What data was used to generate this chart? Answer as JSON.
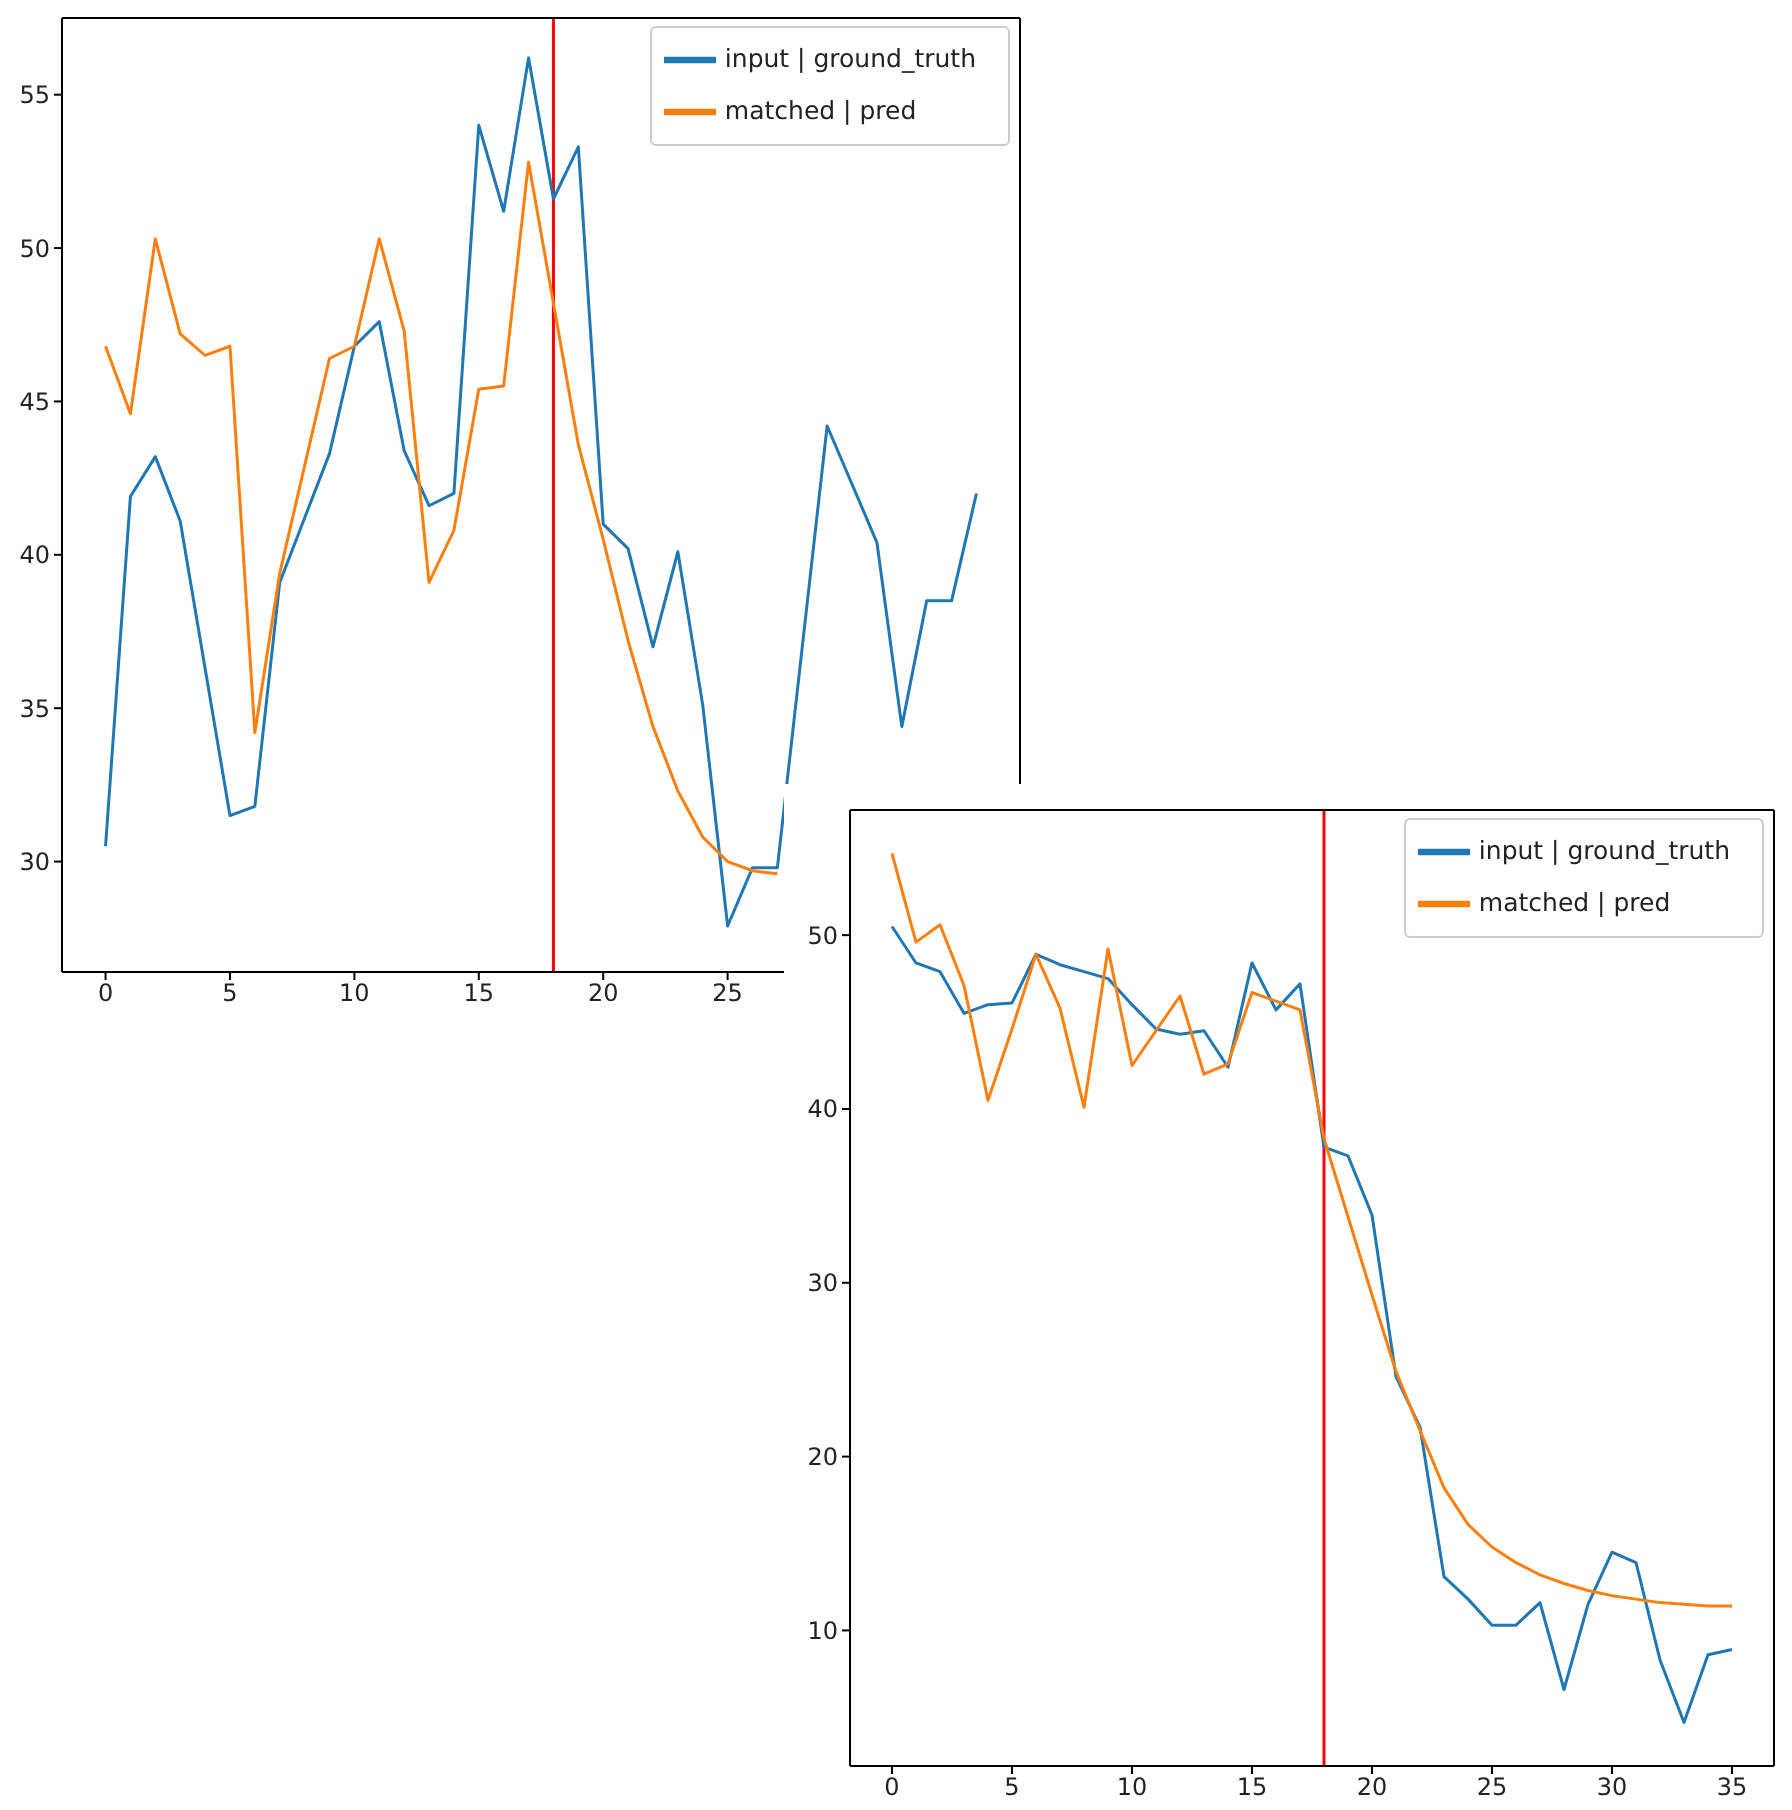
{
  "chart_data": [
    {
      "type": "line",
      "x": [
        0,
        1,
        2,
        3,
        4,
        5,
        6,
        7,
        8,
        9,
        10,
        11,
        12,
        13,
        14,
        15,
        16,
        17,
        18,
        19,
        20,
        21,
        22,
        23,
        24,
        25,
        26,
        27,
        28,
        29,
        30,
        31,
        32,
        33,
        34,
        35
      ],
      "xlim": [
        -1.75,
        36.75
      ],
      "xticks": [
        0,
        5,
        10,
        15,
        20,
        25
      ],
      "ylim": [
        26.4,
        57.5
      ],
      "yticks": [
        30,
        35,
        40,
        45,
        50,
        55
      ],
      "legend": "top right",
      "ref_lines": [
        {
          "axis": "x",
          "value": 18,
          "color": "#ff0000"
        }
      ],
      "series": [
        {
          "name": "input | ground_truth",
          "color": "#1f77b4",
          "values": [
            30.5,
            41.9,
            43.2,
            41.1,
            36.3,
            31.5,
            31.8,
            39.1,
            41.2,
            43.3,
            46.8,
            47.6,
            43.4,
            41.6,
            42.0,
            54.0,
            51.2,
            56.2,
            51.6,
            53.3,
            41.0,
            40.2,
            37.0,
            40.1,
            35.1,
            27.9,
            29.8,
            29.8,
            37.0,
            44.2,
            42.3,
            40.4,
            34.4,
            38.5,
            38.5,
            42.0
          ]
        },
        {
          "name": "matched | pred",
          "color": "#ff7f0e",
          "values": [
            46.8,
            44.6,
            50.3,
            47.2,
            46.5,
            46.8,
            34.2,
            39.4,
            42.9,
            46.4,
            46.8,
            50.3,
            47.3,
            39.1,
            40.8,
            45.4,
            45.5,
            52.8,
            48.2,
            43.6,
            40.5,
            37.2,
            34.4,
            32.3,
            30.8,
            30.0,
            29.7,
            29.6,
            null,
            null,
            null,
            null,
            null,
            null,
            null,
            null
          ]
        }
      ]
    },
    {
      "type": "line",
      "x": [
        0,
        1,
        2,
        3,
        4,
        5,
        6,
        7,
        8,
        9,
        10,
        11,
        12,
        13,
        14,
        15,
        16,
        17,
        18,
        19,
        20,
        21,
        22,
        23,
        24,
        25,
        26,
        27,
        28,
        29,
        30,
        31,
        32,
        33,
        34,
        35
      ],
      "xlim": [
        -1.75,
        36.75
      ],
      "xticks": [
        0,
        5,
        10,
        15,
        20,
        25,
        30,
        35
      ],
      "ylim": [
        2.2,
        57.2
      ],
      "yticks": [
        10,
        20,
        30,
        40,
        50
      ],
      "legend": "top right",
      "ref_lines": [
        {
          "axis": "x",
          "value": 18,
          "color": "#ff0000"
        }
      ],
      "series": [
        {
          "name": "input | ground_truth",
          "color": "#1f77b4",
          "values": [
            50.5,
            48.4,
            47.9,
            45.5,
            46.0,
            46.1,
            48.9,
            48.3,
            47.9,
            47.5,
            46.0,
            44.6,
            44.3,
            44.5,
            42.4,
            48.4,
            45.7,
            47.2,
            37.8,
            37.3,
            33.9,
            24.6,
            21.7,
            13.1,
            11.8,
            10.3,
            10.3,
            11.6,
            6.6,
            11.5,
            14.5,
            13.9,
            8.3,
            4.7,
            8.6,
            8.9
          ]
        },
        {
          "name": "matched | pred",
          "color": "#ff7f0e",
          "values": [
            54.7,
            49.6,
            50.6,
            47.1,
            40.5,
            44.6,
            48.9,
            45.8,
            40.1,
            49.2,
            42.5,
            44.5,
            46.5,
            42.0,
            42.6,
            46.7,
            46.2,
            45.7,
            38.3,
            33.8,
            29.3,
            24.9,
            21.5,
            18.2,
            16.1,
            14.8,
            13.9,
            13.2,
            12.7,
            12.3,
            12.0,
            11.8,
            11.6,
            11.5,
            11.4,
            11.4
          ]
        }
      ]
    }
  ]
}
